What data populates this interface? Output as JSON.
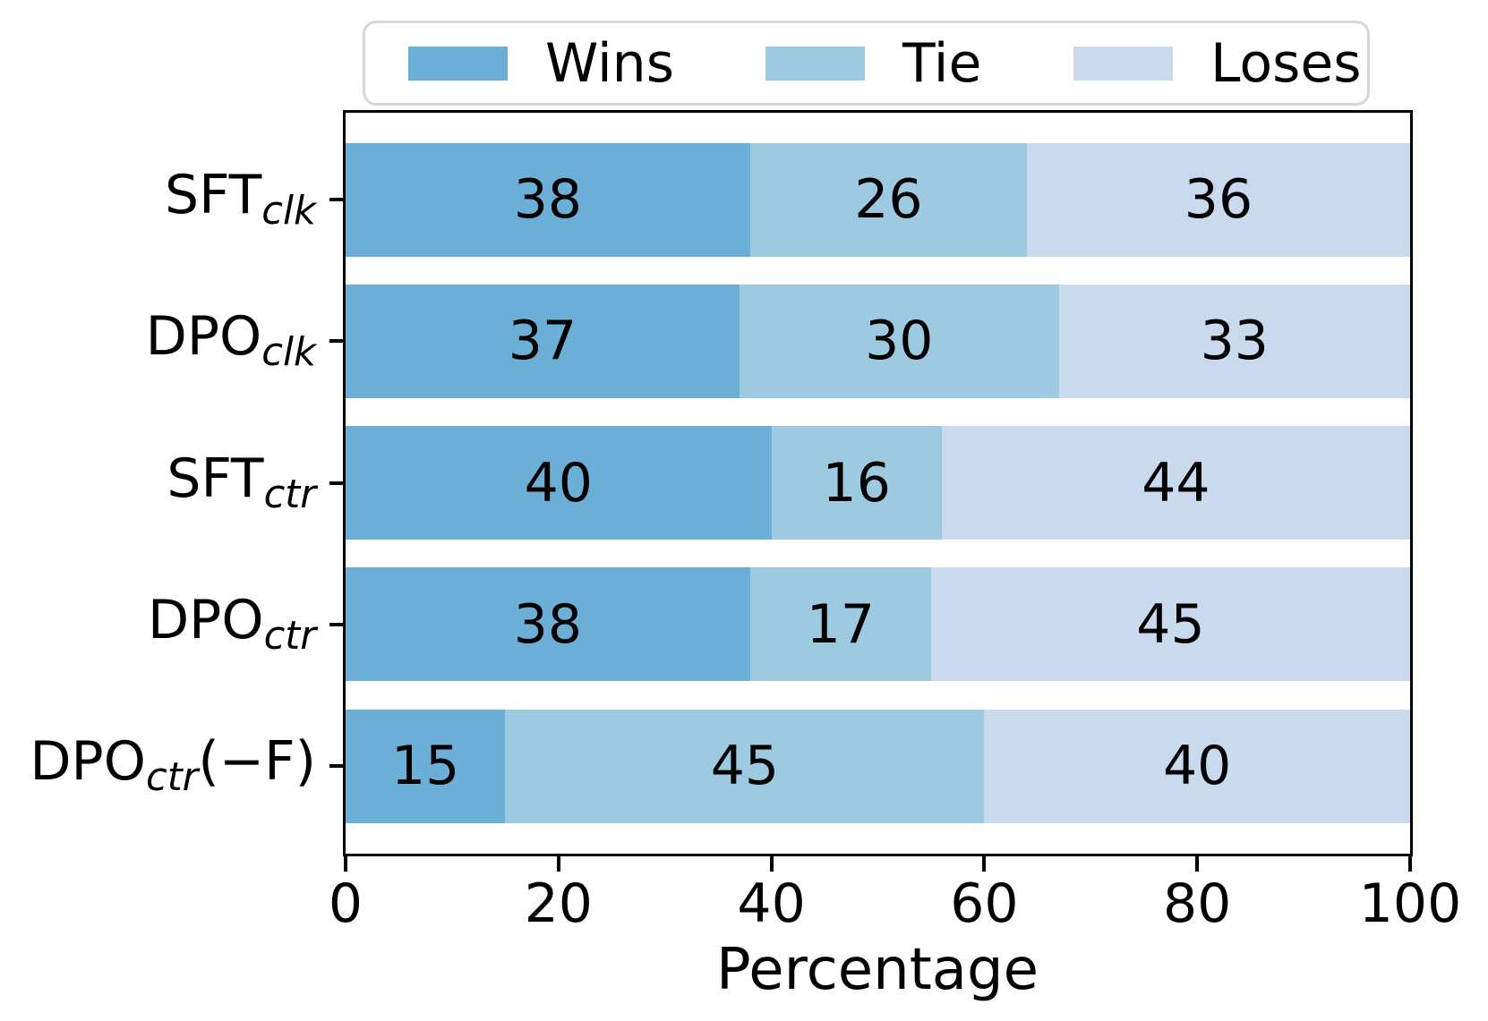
{
  "figure": {
    "background": "#ffffff"
  },
  "legend": {
    "border_color": "#d7d7d7",
    "position": "top"
  },
  "chart_data": {
    "type": "bar",
    "orientation": "horizontal",
    "stacked": true,
    "title": "",
    "xlabel": "Percentage",
    "ylabel": "",
    "xlim": [
      0,
      100
    ],
    "xticks": [
      0,
      20,
      40,
      60,
      80,
      100
    ],
    "grid": false,
    "legend_position": "top",
    "categories": [
      "SFT_clk",
      "DPO_clk",
      "SFT_ctr",
      "DPO_ctr",
      "DPO_ctr(−F)"
    ],
    "category_parts": [
      {
        "base": "SFT",
        "sub": "clk",
        "suffix": ""
      },
      {
        "base": "DPO",
        "sub": "clk",
        "suffix": ""
      },
      {
        "base": "SFT",
        "sub": "ctr",
        "suffix": ""
      },
      {
        "base": "DPO",
        "sub": "ctr",
        "suffix": ""
      },
      {
        "base": "DPO",
        "sub": "ctr",
        "suffix": "(−F)"
      }
    ],
    "series": [
      {
        "name": "Wins",
        "color": "#6baed6",
        "values": [
          38,
          37,
          40,
          38,
          15
        ]
      },
      {
        "name": "Tie",
        "color": "#9dcae1",
        "values": [
          26,
          30,
          16,
          17,
          45
        ]
      },
      {
        "name": "Loses",
        "color": "#c9daee",
        "values": [
          36,
          33,
          44,
          45,
          40
        ]
      }
    ],
    "value_labels_shown": true,
    "text_color": "#000000"
  }
}
